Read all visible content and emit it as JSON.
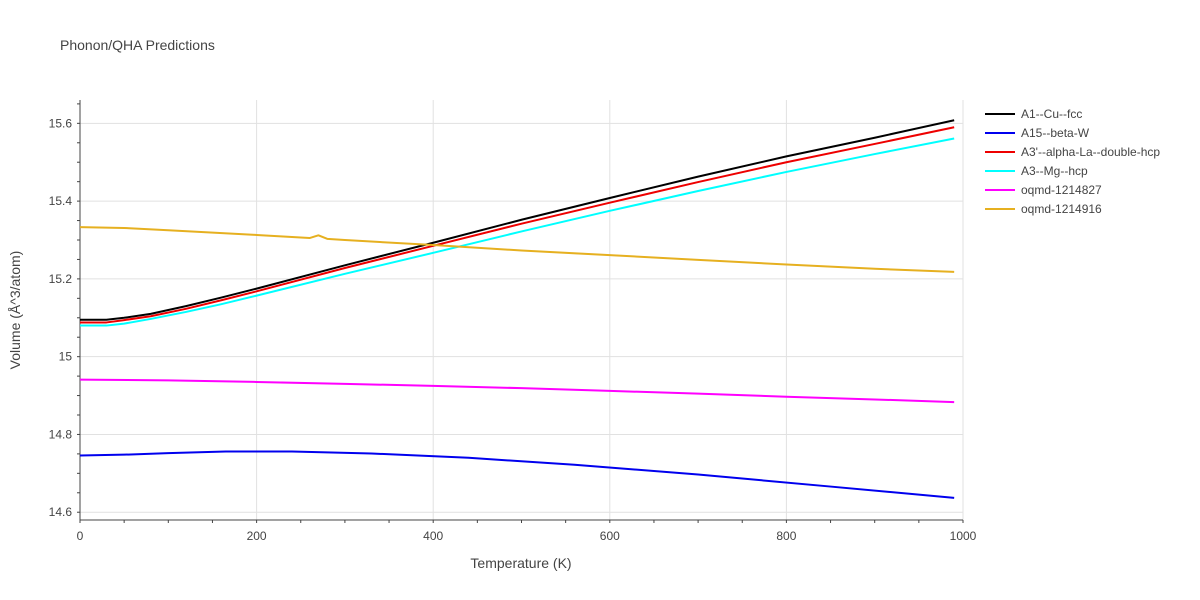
{
  "chart_data": {
    "type": "line",
    "title": "Phonon/QHA Predictions",
    "xlabel": "Temperature (K)",
    "ylabel": "Volume (Å^3/atom)",
    "xlim": [
      0,
      1000
    ],
    "ylim": [
      14.58,
      15.66
    ],
    "x_ticks": [
      0,
      200,
      400,
      600,
      800,
      1000
    ],
    "x_tick_labels": [
      "0",
      "200",
      "400",
      "600",
      "800",
      "1000"
    ],
    "y_ticks": [
      14.6,
      14.8,
      15.0,
      15.2,
      15.4,
      15.6
    ],
    "y_tick_labels": [
      "14.6",
      "14.8",
      "15",
      "15.2",
      "15.4",
      "15.6"
    ],
    "grid": true,
    "legend_position": "top-right",
    "series": [
      {
        "name": "A1--Cu--fcc",
        "color": "#000000",
        "x": [
          0,
          30,
          50,
          80,
          120,
          160,
          200,
          300,
          400,
          500,
          600,
          700,
          800,
          900,
          990
        ],
        "y": [
          15.095,
          15.095,
          15.1,
          15.11,
          15.13,
          15.152,
          15.175,
          15.235,
          15.293,
          15.352,
          15.408,
          15.463,
          15.515,
          15.563,
          15.608
        ]
      },
      {
        "name": "A15--beta-W",
        "color": "#0000ee",
        "x": [
          0,
          50,
          100,
          165,
          240,
          330,
          440,
          560,
          700,
          850,
          990
        ],
        "y": [
          14.746,
          14.748,
          14.752,
          14.756,
          14.756,
          14.751,
          14.74,
          14.722,
          14.697,
          14.666,
          14.637
        ]
      },
      {
        "name": "A3'--alpha-La--double-hcp",
        "color": "#ee0000",
        "x": [
          0,
          30,
          50,
          80,
          120,
          160,
          200,
          300,
          400,
          500,
          600,
          700,
          800,
          900,
          990
        ],
        "y": [
          15.088,
          15.088,
          15.094,
          15.104,
          15.123,
          15.145,
          15.168,
          15.228,
          15.285,
          15.342,
          15.396,
          15.449,
          15.5,
          15.547,
          15.59
        ]
      },
      {
        "name": "A3--Mg--hcp",
        "color": "#00ffff",
        "x": [
          0,
          30,
          50,
          80,
          120,
          160,
          200,
          300,
          400,
          500,
          600,
          700,
          800,
          900,
          990
        ],
        "y": [
          15.08,
          15.08,
          15.085,
          15.097,
          15.115,
          15.135,
          15.157,
          15.213,
          15.267,
          15.322,
          15.375,
          15.426,
          15.475,
          15.521,
          15.561
        ]
      },
      {
        "name": "oqmd-1214827",
        "color": "#ff00ff",
        "x": [
          0,
          100,
          200,
          300,
          400,
          500,
          600,
          700,
          800,
          900,
          990
        ],
        "y": [
          14.941,
          14.939,
          14.935,
          14.93,
          14.925,
          14.919,
          14.912,
          14.905,
          14.897,
          14.89,
          14.883
        ]
      },
      {
        "name": "oqmd-1214916",
        "color": "#e6b020",
        "x": [
          0,
          50,
          100,
          200,
          260,
          270,
          280,
          300,
          400,
          500,
          600,
          700,
          800,
          900,
          990
        ],
        "y": [
          15.333,
          15.331,
          15.325,
          15.313,
          15.305,
          15.312,
          15.303,
          15.3,
          15.287,
          15.273,
          15.261,
          15.249,
          15.237,
          15.226,
          15.218
        ]
      }
    ]
  }
}
